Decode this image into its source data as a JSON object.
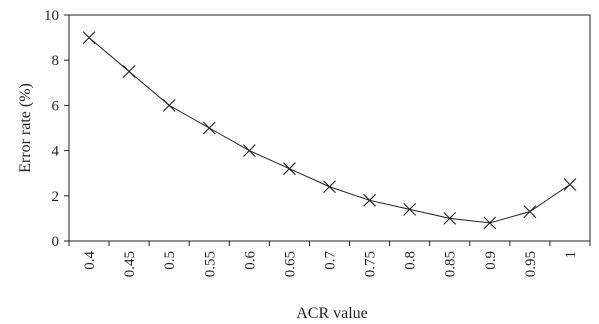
{
  "chart_data": {
    "type": "line",
    "title": "",
    "xlabel": "ACR value",
    "ylabel": "Error rate (%)",
    "ylim": [
      0,
      10
    ],
    "y_ticks": [
      0,
      2,
      4,
      6,
      8,
      10
    ],
    "grid": false,
    "legend": "none",
    "marker": "x",
    "categories": [
      "0.4",
      "0.45",
      "0.5",
      "0.55",
      "0.6",
      "0.65",
      "0.7",
      "0.75",
      "0.8",
      "0.85",
      "0.9",
      "0.95",
      "1"
    ],
    "series": [
      {
        "values": [
          9.0,
          7.5,
          6.0,
          5.0,
          4.0,
          3.2,
          2.4,
          1.8,
          1.4,
          1.0,
          0.8,
          1.3,
          2.5
        ]
      }
    ],
    "colors": {
      "line": "#231f20",
      "axis": "#231f20"
    }
  }
}
